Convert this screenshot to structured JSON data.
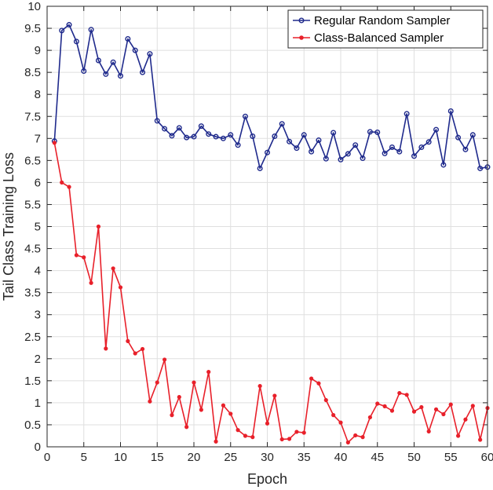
{
  "chart_data": {
    "type": "line",
    "title": "",
    "xlabel": "Epoch",
    "ylabel": "Tail Class Training Loss",
    "xlim": [
      0,
      60
    ],
    "ylim": [
      0,
      10
    ],
    "xticks": [
      0,
      5,
      10,
      15,
      20,
      25,
      30,
      35,
      40,
      45,
      50,
      55,
      60
    ],
    "yticks": [
      0,
      0.5,
      1,
      1.5,
      2,
      2.5,
      3,
      3.5,
      4,
      4.5,
      5,
      5.5,
      6,
      6.5,
      7,
      7.5,
      8,
      8.5,
      9,
      9.5,
      10
    ],
    "grid": true,
    "legend_position": "top-right",
    "x": [
      1,
      2,
      3,
      4,
      5,
      6,
      7,
      8,
      9,
      10,
      11,
      12,
      13,
      14,
      15,
      16,
      17,
      18,
      19,
      20,
      21,
      22,
      23,
      24,
      25,
      26,
      27,
      28,
      29,
      30,
      31,
      32,
      33,
      34,
      35,
      36,
      37,
      38,
      39,
      40,
      41,
      42,
      43,
      44,
      45,
      46,
      47,
      48,
      49,
      50,
      51,
      52,
      53,
      54,
      55,
      56,
      57,
      58,
      59,
      60
    ],
    "series": [
      {
        "name": "Regular Random Sampler",
        "color": "#1f2a8c",
        "marker": "circle-open",
        "values": [
          6.94,
          9.45,
          9.58,
          9.2,
          8.53,
          9.47,
          8.77,
          8.46,
          8.73,
          8.42,
          9.26,
          9.0,
          8.5,
          8.92,
          7.4,
          7.22,
          7.06,
          7.24,
          7.02,
          7.04,
          7.28,
          7.1,
          7.04,
          7.0,
          7.08,
          6.85,
          7.5,
          7.05,
          6.32,
          6.68,
          7.05,
          7.33,
          6.93,
          6.78,
          7.08,
          6.7,
          6.96,
          6.54,
          7.13,
          6.52,
          6.65,
          6.85,
          6.55,
          7.15,
          7.14,
          6.66,
          6.8,
          6.7,
          7.56,
          6.6,
          6.8,
          6.92,
          7.2,
          6.4,
          7.62,
          7.02,
          6.75,
          7.08,
          6.32,
          6.35
        ]
      },
      {
        "name": "Class-Balanced Sampler",
        "color": "#e8202a",
        "marker": "dot",
        "values": [
          6.9,
          6.0,
          5.9,
          4.35,
          4.3,
          3.72,
          5.0,
          2.23,
          4.05,
          3.62,
          2.4,
          2.12,
          2.22,
          1.03,
          1.46,
          1.98,
          0.72,
          1.13,
          0.45,
          1.46,
          0.84,
          1.7,
          0.12,
          0.94,
          0.75,
          0.38,
          0.25,
          0.22,
          1.38,
          0.53,
          1.16,
          0.17,
          0.18,
          0.34,
          0.32,
          1.55,
          1.44,
          1.06,
          0.72,
          0.55,
          0.1,
          0.26,
          0.22,
          0.67,
          0.98,
          0.92,
          0.82,
          1.22,
          1.18,
          0.8,
          0.9,
          0.35,
          0.85,
          0.74,
          0.96,
          0.25,
          0.62,
          0.93,
          0.16,
          0.88
        ]
      }
    ]
  }
}
